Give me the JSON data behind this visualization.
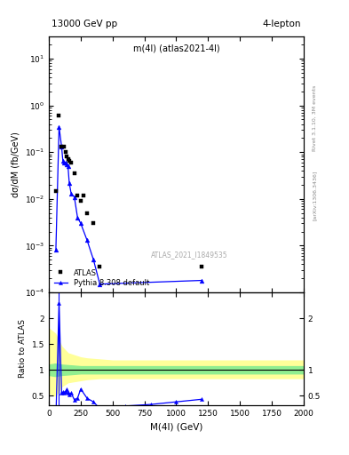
{
  "title_top": "13000 GeV pp",
  "title_top_right": "4-lepton",
  "plot_title": "m(4l) (atlas2021-4l)",
  "watermark": "ATLAS_2021_I1849535",
  "right_label_top": "Rivet 3.1.10, 3M events",
  "right_label_bottom": "[arXiv:1306.3436]",
  "ylabel_main": "dσ/dM (fb/GeV)",
  "ylabel_ratio": "Ratio to ATLAS",
  "xlabel": "M(4l) (GeV)",
  "xlim": [
    0,
    2000
  ],
  "ylim_main": [
    0.0001,
    30
  ],
  "ylim_ratio": [
    0.32,
    2.5
  ],
  "atlas_x": [
    55,
    80,
    100,
    120,
    130,
    140,
    150,
    160,
    175,
    200,
    225,
    250,
    275,
    300,
    350,
    400,
    1200
  ],
  "atlas_y": [
    0.015,
    0.6,
    0.13,
    0.13,
    0.1,
    0.08,
    0.07,
    0.065,
    0.06,
    0.035,
    0.012,
    0.009,
    0.012,
    0.005,
    0.003,
    0.00035,
    0.00035
  ],
  "pythia_x": [
    55,
    80,
    100,
    110,
    120,
    130,
    140,
    150,
    160,
    175,
    200,
    225,
    250,
    300,
    350,
    400,
    1200
  ],
  "pythia_y": [
    0.0008,
    0.35,
    0.13,
    0.065,
    0.06,
    0.06,
    0.055,
    0.05,
    0.022,
    0.013,
    0.011,
    0.004,
    0.003,
    0.0013,
    0.0005,
    0.00015,
    0.00018
  ],
  "ratio_x": [
    55,
    80,
    100,
    110,
    120,
    130,
    140,
    150,
    160,
    175,
    200,
    225,
    250,
    300,
    350,
    400,
    600,
    800,
    1000,
    1200
  ],
  "ratio_y": [
    0.053,
    2.3,
    0.55,
    0.57,
    0.55,
    0.58,
    0.62,
    0.55,
    0.52,
    0.55,
    0.42,
    0.45,
    0.63,
    0.45,
    0.38,
    0.25,
    0.3,
    0.33,
    0.38,
    0.43
  ],
  "band_x": [
    0,
    50,
    100,
    150,
    200,
    250,
    300,
    400,
    500,
    600,
    700,
    800,
    1000,
    1500,
    2000
  ],
  "band_green_lo": [
    0.9,
    0.88,
    0.9,
    0.91,
    0.92,
    0.93,
    0.93,
    0.93,
    0.93,
    0.93,
    0.93,
    0.93,
    0.93,
    0.93,
    0.93
  ],
  "band_green_hi": [
    1.1,
    1.12,
    1.1,
    1.09,
    1.08,
    1.07,
    1.07,
    1.07,
    1.07,
    1.07,
    1.07,
    1.07,
    1.07,
    1.07,
    1.07
  ],
  "band_yellow_lo": [
    0.55,
    0.5,
    0.68,
    0.76,
    0.78,
    0.8,
    0.82,
    0.84,
    0.84,
    0.84,
    0.84,
    0.84,
    0.84,
    0.84,
    0.84
  ],
  "band_yellow_hi": [
    1.8,
    1.7,
    1.45,
    1.32,
    1.28,
    1.24,
    1.22,
    1.2,
    1.18,
    1.18,
    1.18,
    1.18,
    1.18,
    1.18,
    1.18
  ],
  "color_atlas": "black",
  "color_pythia": "blue",
  "color_green": "#90EE90",
  "color_yellow": "#FFFF99",
  "ratio_line_color": "black",
  "background_color": "white"
}
